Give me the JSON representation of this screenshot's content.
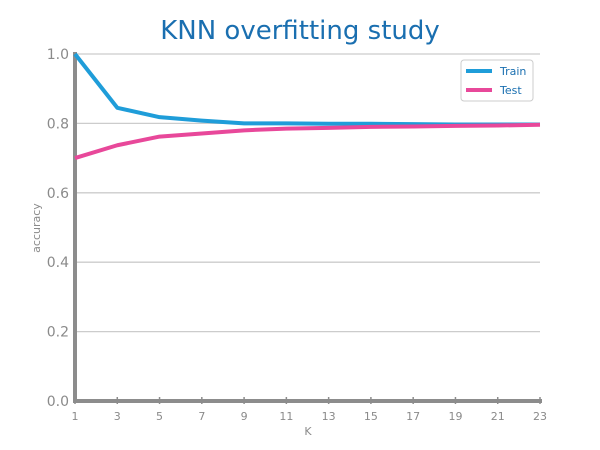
{
  "chart_data": {
    "type": "line",
    "title": "KNN overfitting study",
    "xlabel": "K",
    "ylabel": "accuracy",
    "x": [
      1,
      3,
      5,
      7,
      9,
      11,
      13,
      15,
      17,
      19,
      21,
      23
    ],
    "xticks": [
      "1",
      "3",
      "5",
      "7",
      "9",
      "11",
      "13",
      "15",
      "17",
      "19",
      "21",
      "23"
    ],
    "yticks": [
      "0.0",
      "0.2",
      "0.4",
      "0.6",
      "0.8",
      "1.0"
    ],
    "ylim": [
      0,
      1
    ],
    "grid": "horizontal",
    "legend_position": "top-right",
    "series": [
      {
        "name": "Train",
        "color": "#1f9dd9",
        "values": [
          1.0,
          0.845,
          0.818,
          0.808,
          0.8,
          0.8,
          0.799,
          0.799,
          0.798,
          0.797,
          0.797,
          0.797
        ]
      },
      {
        "name": "Test",
        "color": "#e8489a",
        "values": [
          0.7,
          0.737,
          0.762,
          0.771,
          0.78,
          0.785,
          0.787,
          0.79,
          0.791,
          0.793,
          0.794,
          0.796
        ]
      }
    ]
  }
}
